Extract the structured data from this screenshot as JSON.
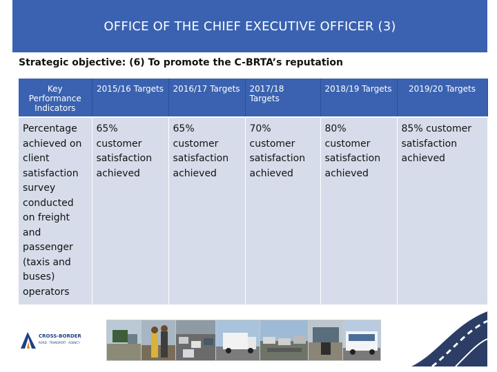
{
  "header": {
    "title": "OFFICE OF THE CHIEF EXECUTIVE OFFICER (3)"
  },
  "subtitle": "Strategic objective: (6) To promote the C-BRTA’s reputation",
  "table": {
    "columns": [
      "Key Performance Indicators",
      "2015/16 Targets",
      "2016/17 Targets",
      "2017/18 Targets",
      "2018/19 Targets",
      "2019/20 Targets"
    ],
    "row": [
      "Percentage achieved on client satisfaction survey conducted on freight and passenger (taxis and buses) operators",
      "65% customer satisfaction achieved",
      "65% customer satisfaction achieved",
      "70% customer satisfaction achieved",
      "80% customer satisfaction achieved",
      "85% customer satisfaction achieved"
    ]
  },
  "footer": {
    "logo_text": "CROSS-BORDER",
    "logo_subtext": "ROAD · TRANSPORT · AGENCY"
  },
  "colors": {
    "header_blue": "#3a62b0",
    "cell_bg": "#d6dce9",
    "logo_blue": "#1f3f86"
  }
}
